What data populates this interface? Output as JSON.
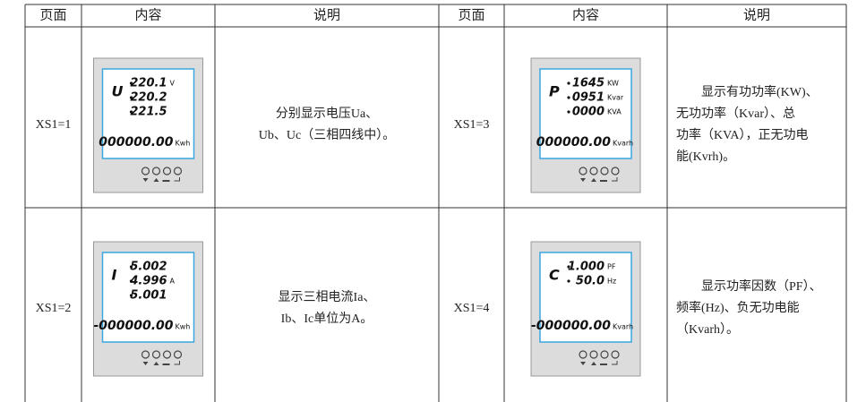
{
  "table": {
    "header": [
      "页面",
      "内容",
      "说明",
      "页面",
      "内容",
      "说明"
    ],
    "rows": [
      {
        "left": {
          "page": "XS1=1",
          "meter": {
            "symbol": "U",
            "readings": [
              {
                "value": "220.1",
                "unit": "V"
              },
              {
                "value": "220.2"
              },
              {
                "value": "221.5"
              }
            ],
            "energy": "000000.00",
            "energy_unit": "Kwh"
          },
          "description": [
            "分别显示电压Ua、",
            "Ub、Uc（三相四线中）。"
          ]
        },
        "right": {
          "page": "XS1=3",
          "meter": {
            "symbol": "P",
            "readings": [
              {
                "value": "1645",
                "unit": "KW"
              },
              {
                "value": "0951",
                "unit": "Kvar"
              },
              {
                "value": "0000",
                "unit": "KVA"
              }
            ],
            "energy": "000000.00",
            "energy_unit": "Kvarh"
          },
          "description": [
            "显示有功功率(KW)、",
            "无功功率（Kvar）、总",
            "功率（KVA），正无功电",
            "能(Kvrh)。"
          ]
        }
      },
      {
        "left": {
          "page": "XS1=2",
          "meter": {
            "symbol": "I",
            "readings": [
              {
                "value": "5.002"
              },
              {
                "value": "4.996",
                "unit": "A"
              },
              {
                "value": "5.001"
              }
            ],
            "energy": "-000000.00",
            "energy_unit": "Kwh"
          },
          "description": [
            "显示三相电流Ia、",
            "Ib、Ic单位为A。"
          ]
        },
        "right": {
          "page": "XS1=4",
          "meter": {
            "symbol": "C",
            "readings": [
              {
                "value": "1.000",
                "unit": "PF"
              },
              {
                "value": "50.0",
                "unit": "Hz"
              }
            ],
            "energy": "-000000.00",
            "energy_unit": "Kvarh"
          },
          "description": [
            "显示功率因数（PF）、",
            "频率(Hz)、负无功电能",
            "（Kvarh）。"
          ]
        }
      }
    ]
  }
}
